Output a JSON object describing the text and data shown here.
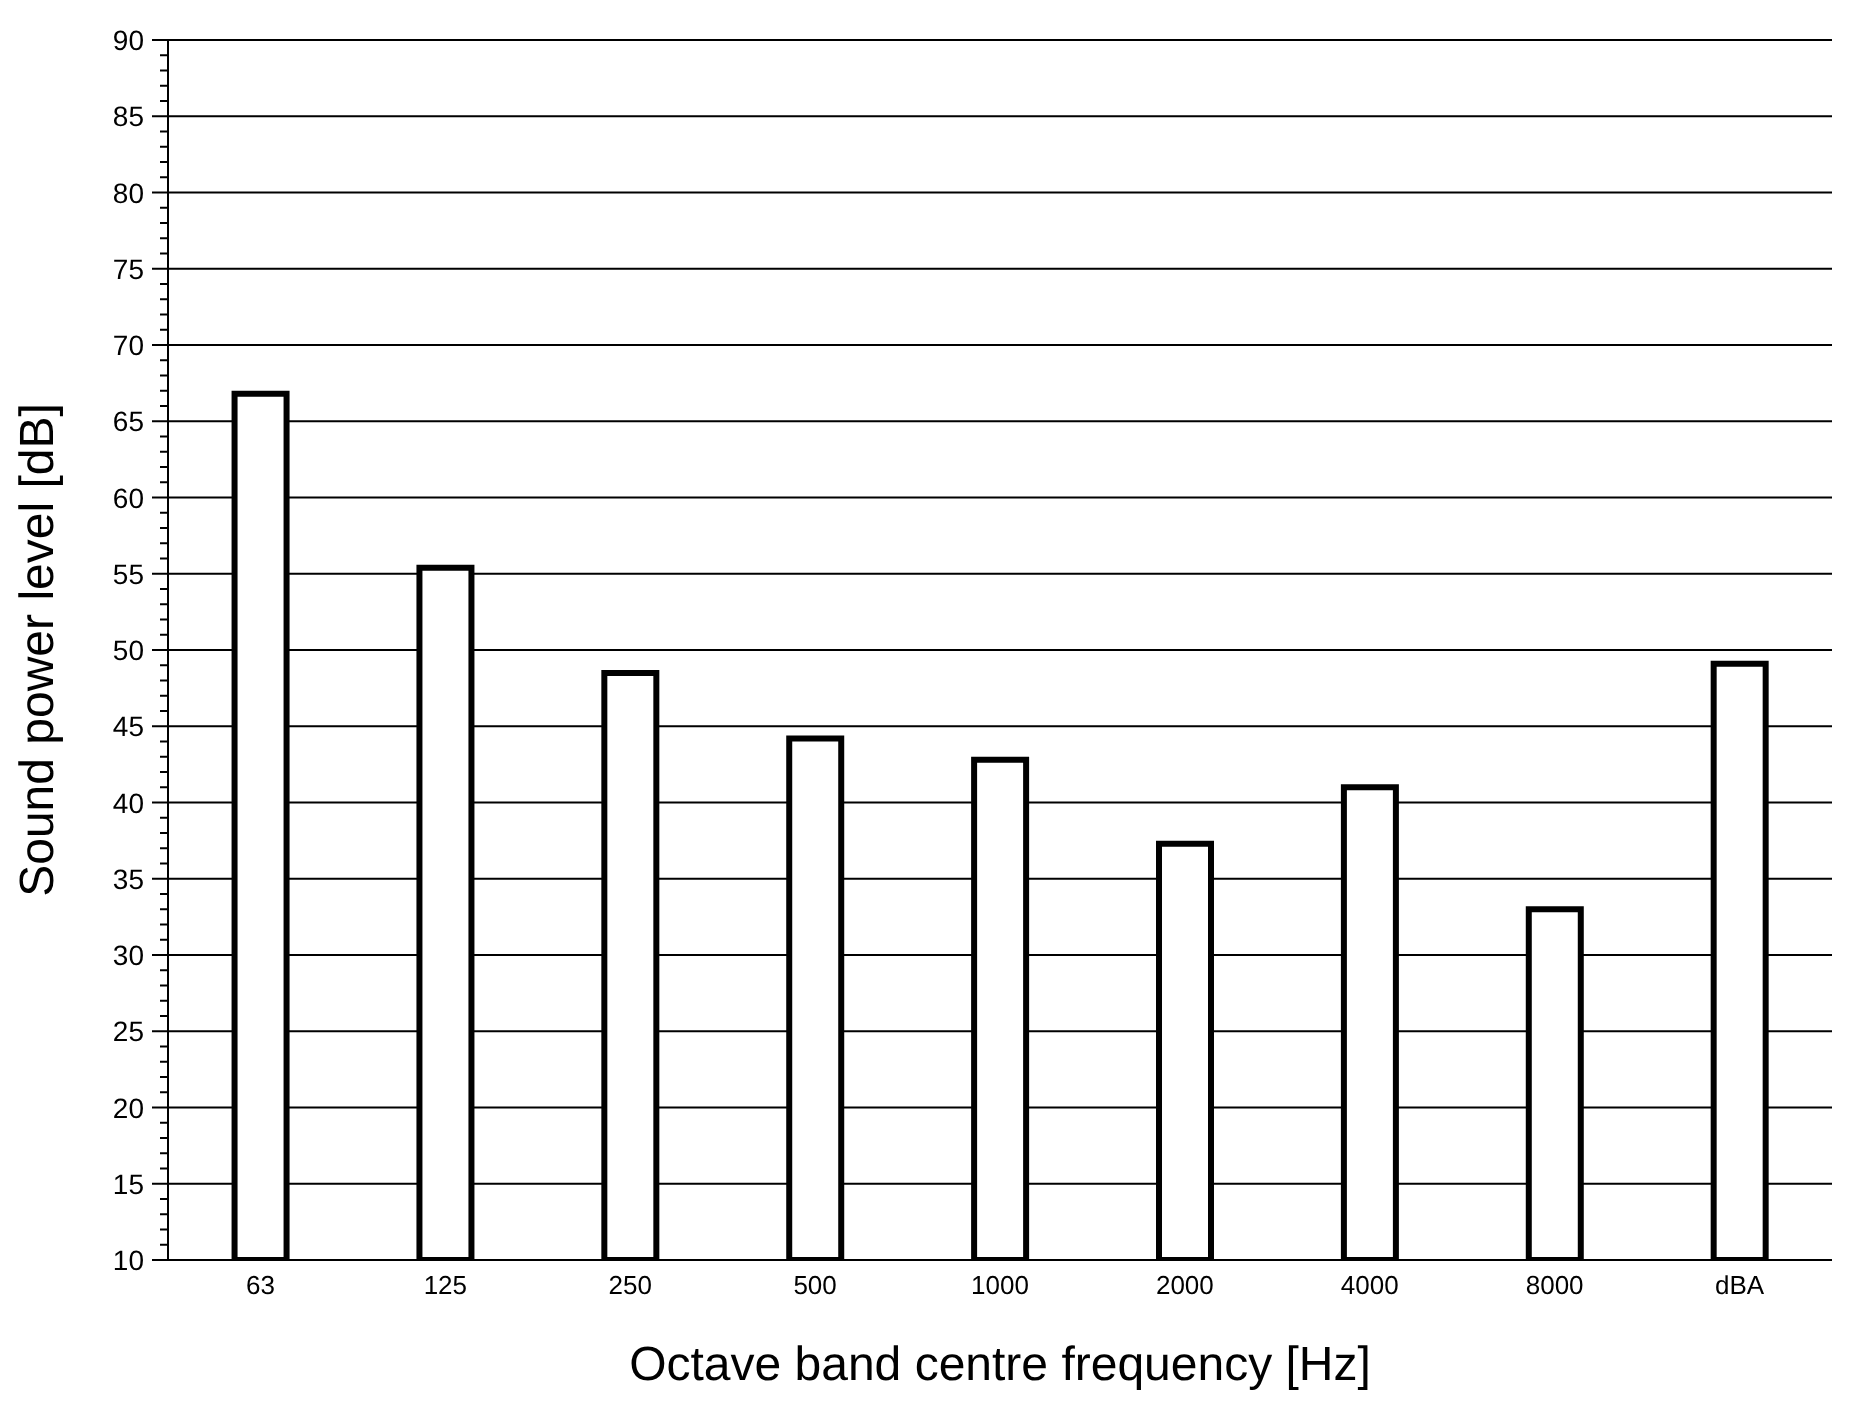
{
  "chart_data": {
    "type": "bar",
    "xlabel": "Octave band centre frequency [Hz]",
    "ylabel": "Sound power level [dB]",
    "categories": [
      "63",
      "125",
      "250",
      "500",
      "1000",
      "2000",
      "4000",
      "8000",
      "dBA"
    ],
    "values": [
      66.8,
      55.4,
      48.5,
      44.2,
      42.8,
      37.3,
      41.0,
      33.0,
      49.1
    ],
    "color": "#ffffff",
    "ylim": [
      10,
      90
    ],
    "yticks": [
      10,
      {
        "value": 11,
        "label": null
      },
      {
        "value": 12,
        "label": null
      },
      {
        "value": 13,
        "label": null
      },
      {
        "value": 14,
        "label": null
      },
      15,
      {
        "value": 16,
        "label": null
      },
      {
        "value": 17,
        "label": null
      },
      {
        "value": 18,
        "label": null
      },
      {
        "value": 19,
        "label": null
      },
      20,
      {
        "value": 21,
        "label": null
      },
      {
        "value": 22,
        "label": null
      },
      {
        "value": 23,
        "label": null
      },
      {
        "value": 24,
        "label": null
      },
      25,
      {
        "value": 26,
        "label": null
      },
      {
        "value": 27,
        "label": null
      },
      {
        "value": 28,
        "label": null
      },
      {
        "value": 29,
        "label": null
      },
      30,
      {
        "value": 31,
        "label": null
      },
      {
        "value": 32,
        "label": null
      },
      {
        "value": 33,
        "label": null
      },
      {
        "value": 34,
        "label": null
      },
      35,
      {
        "value": 36,
        "label": null
      },
      {
        "value": 37,
        "label": null
      },
      {
        "value": 38,
        "label": null
      },
      {
        "value": 39,
        "label": null
      },
      40,
      {
        "value": 41,
        "label": null
      },
      {
        "value": 42,
        "label": null
      },
      {
        "value": 43,
        "label": null
      },
      {
        "value": 44,
        "label": null
      },
      45,
      {
        "value": 46,
        "label": null
      },
      {
        "value": 47,
        "label": null
      },
      {
        "value": 48,
        "label": null
      },
      {
        "value": 49,
        "label": null
      },
      50,
      {
        "value": 51,
        "label": null
      },
      {
        "value": 52,
        "label": null
      },
      {
        "value": 53,
        "label": null
      },
      {
        "value": 54,
        "label": null
      },
      55,
      {
        "value": 56,
        "label": null
      },
      {
        "value": 57,
        "label": null
      },
      {
        "value": 58,
        "label": null
      },
      {
        "value": 59,
        "label": null
      },
      60,
      {
        "value": 61,
        "label": null
      },
      {
        "value": 62,
        "label": null
      },
      {
        "value": 63,
        "label": null
      },
      {
        "value": 64,
        "label": null
      },
      65,
      {
        "value": 66,
        "label": null
      },
      {
        "value": 67,
        "label": null
      },
      {
        "value": 68,
        "label": null
      },
      {
        "value": 69,
        "label": null
      },
      70,
      {
        "value": 71,
        "label": null
      },
      {
        "value": 72,
        "label": null
      },
      {
        "value": 73,
        "label": null
      },
      {
        "value": 74,
        "label": null
      },
      75,
      {
        "value": 76,
        "label": null
      },
      {
        "value": 77,
        "label": null
      },
      {
        "value": 78,
        "label": null
      },
      {
        "value": 79,
        "label": null
      },
      80,
      {
        "value": 81,
        "label": null
      },
      {
        "value": 82,
        "label": null
      },
      {
        "value": 83,
        "label": null
      },
      {
        "value": 84,
        "label": null
      },
      85,
      {
        "value": 86,
        "label": null
      },
      {
        "value": 87,
        "label": null
      },
      {
        "value": 88,
        "label": null
      },
      {
        "value": 89,
        "label": null
      },
      90
    ],
    "grid": "y"
  }
}
